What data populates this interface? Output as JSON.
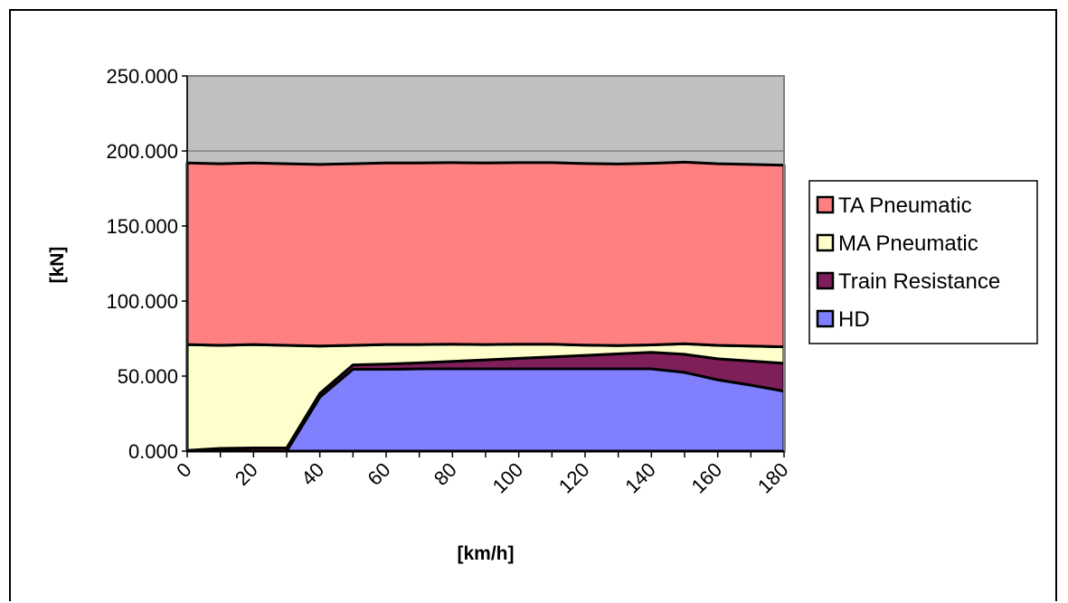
{
  "chart_data": {
    "type": "area",
    "title": "",
    "xlabel": "[km/h]",
    "ylabel": "[kN]",
    "xlim": [
      0,
      180
    ],
    "ylim": [
      0,
      250
    ],
    "x_ticks": [
      "0",
      "20",
      "40",
      "60",
      "80",
      "100",
      "120",
      "140",
      "160",
      "180"
    ],
    "y_ticks": [
      "0.000",
      "50.000",
      "100.000",
      "150.000",
      "200.000",
      "250.000"
    ],
    "gridlines": [
      200
    ],
    "legend_position": "right",
    "colors": {
      "background_area": "#c0c0c0",
      "gridline": "#808080"
    },
    "x": [
      0,
      10,
      20,
      30,
      40,
      50,
      60,
      70,
      80,
      90,
      100,
      110,
      120,
      130,
      140,
      150,
      160,
      170,
      180
    ],
    "series": [
      {
        "name": "TA Pneumatic",
        "color": "#ff8080",
        "values": [
          121,
          121,
          121,
          121,
          121,
          121,
          121,
          121,
          121,
          121,
          121,
          121,
          121,
          121,
          121,
          121,
          121,
          121,
          121
        ]
      },
      {
        "name": "MA Pneumatic",
        "color": "#ffffcc",
        "values": [
          70.5,
          68.7,
          68.9,
          68.4,
          31.5,
          13,
          13,
          12.2,
          11.4,
          10.2,
          9.4,
          8.4,
          6.8,
          5.5,
          5,
          7,
          9,
          10,
          11
        ]
      },
      {
        "name": "Train Resistance",
        "color": "#7f1f5a",
        "values": [
          0.5,
          1.8,
          2.1,
          2.1,
          2.5,
          3,
          3.5,
          4,
          5,
          6,
          7,
          8,
          9,
          10,
          11,
          12,
          14,
          16,
          18.5
        ]
      },
      {
        "name": "HD",
        "color": "#8080ff",
        "values": [
          0,
          0,
          0,
          0,
          36,
          54.5,
          54.5,
          54.8,
          54.8,
          54.8,
          54.8,
          54.8,
          54.8,
          54.8,
          54.8,
          52.5,
          47.5,
          44,
          40
        ]
      }
    ]
  }
}
